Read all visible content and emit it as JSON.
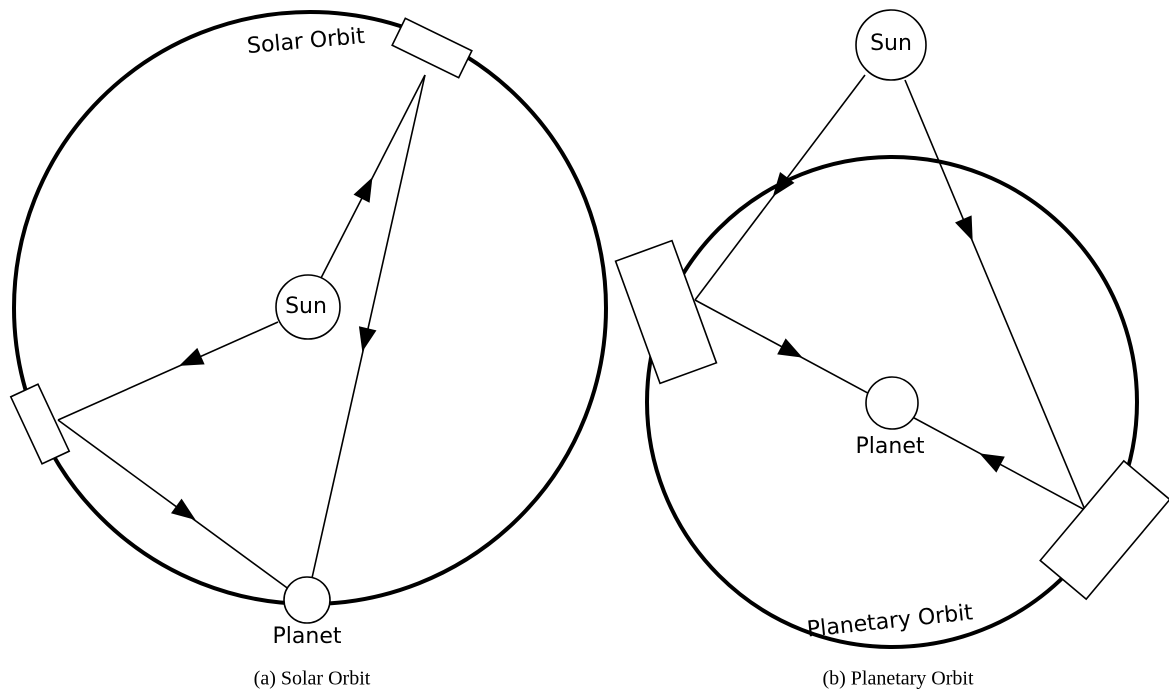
{
  "panels": [
    {
      "orbit_label": "Solar Orbit",
      "sun": "Sun",
      "planet": "Planet",
      "caption": "(a) Solar Orbit"
    },
    {
      "orbit_label": "Planetary Orbit",
      "sun": "Sun",
      "planet": "Planet",
      "caption": "(b) Planetary Orbit"
    }
  ]
}
